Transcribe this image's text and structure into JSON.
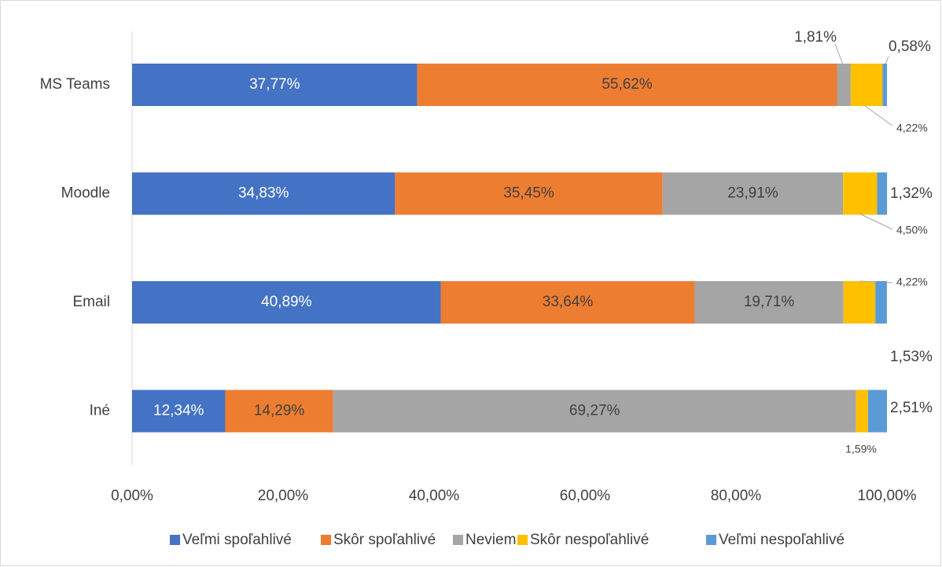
{
  "chart_data": {
    "type": "stacked-bar-horizontal",
    "categories": [
      "MS Teams",
      "Moodle",
      "Email",
      "Iné"
    ],
    "series": [
      {
        "name": "Veľmi spoľahlivé",
        "color": "#4472c4",
        "values": [
          37.77,
          34.83,
          40.89,
          12.34
        ],
        "value_labels": [
          "37,77%",
          "34,83%",
          "40,89%",
          "12,34%"
        ]
      },
      {
        "name": "Skôr spoľahlivé",
        "color": "#ed7d31",
        "values": [
          55.62,
          35.45,
          33.64,
          14.29
        ],
        "value_labels": [
          "55,62%",
          "35,45%",
          "33,64%",
          "14,29%"
        ]
      },
      {
        "name": "Neviem",
        "color": "#a5a5a5",
        "values": [
          1.81,
          23.91,
          19.71,
          69.27
        ],
        "value_labels": [
          "1,81%",
          "23,91%",
          "19,71%",
          "69,27%"
        ]
      },
      {
        "name": "Skôr nespoľahlivé",
        "color": "#ffc000",
        "values": [
          4.22,
          4.5,
          4.22,
          1.59
        ],
        "value_labels": [
          "4,22%",
          "4,50%",
          "4,22%",
          "1,59%"
        ]
      },
      {
        "name": "Veľmi nespoľahlivé",
        "color": "#5b9bd5",
        "values": [
          0.58,
          1.32,
          1.53,
          2.51
        ],
        "value_labels": [
          "0,58%",
          "1,32%",
          "1,53%",
          "2,51%"
        ]
      }
    ],
    "xlim": [
      0,
      100
    ],
    "xticks": [
      {
        "value": 0,
        "label": "0,00%"
      },
      {
        "value": 20,
        "label": "20,00%"
      },
      {
        "value": 40,
        "label": "40,00%"
      },
      {
        "value": 60,
        "label": "60,00%"
      },
      {
        "value": 80,
        "label": "80,00%"
      },
      {
        "value": 100,
        "label": "100,00%"
      }
    ],
    "legend": "bottom"
  }
}
